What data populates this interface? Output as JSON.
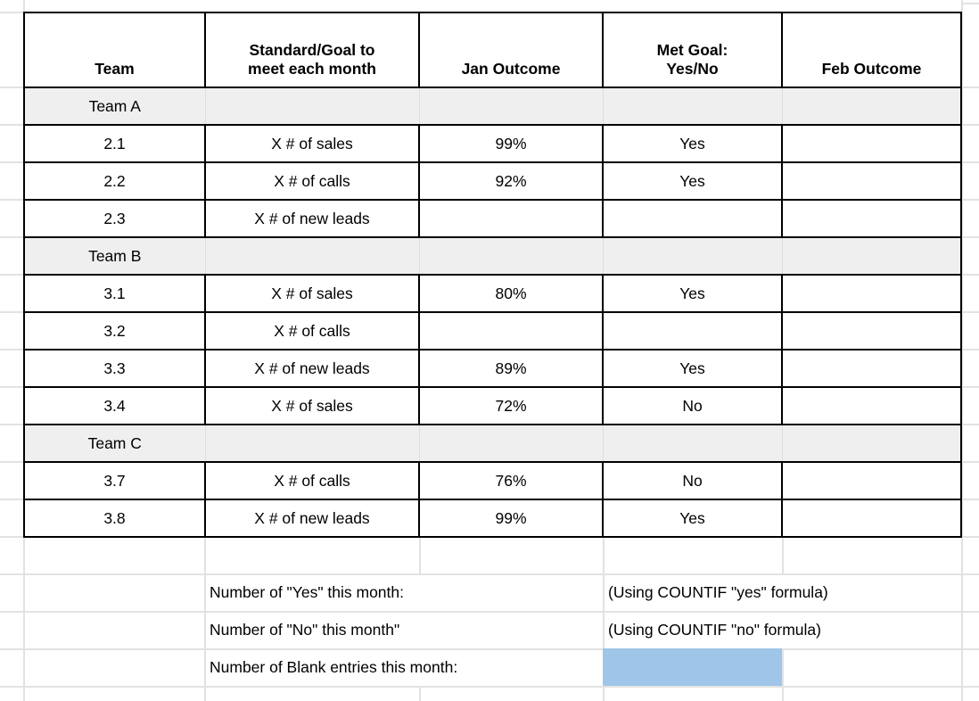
{
  "colors": {
    "highlight_blue": "#9fc5e8",
    "group_row_gray": "#efefef",
    "gridline_gray": "#e2e2e2",
    "border_black": "#000000"
  },
  "table": {
    "headers": {
      "team": "Team",
      "standard": "Standard/Goal to\nmeet each month",
      "jan": "Jan Outcome",
      "met": "Met Goal:\nYes/No",
      "feb": "Feb Outcome"
    },
    "rows": [
      {
        "type": "group",
        "team": "Team A",
        "standard": "",
        "jan": "",
        "met": "",
        "feb": ""
      },
      {
        "type": "data",
        "team": "2.1",
        "standard": "X # of sales",
        "jan": "99%",
        "met": "Yes",
        "feb": ""
      },
      {
        "type": "data",
        "team": "2.2",
        "standard": "X # of calls",
        "jan": "92%",
        "met": "Yes",
        "feb": ""
      },
      {
        "type": "data",
        "team": "2.3",
        "standard": "X # of new leads",
        "jan": "",
        "met": "",
        "feb": ""
      },
      {
        "type": "group",
        "team": "Team B",
        "standard": "",
        "jan": "",
        "met": "",
        "feb": ""
      },
      {
        "type": "data",
        "team": "3.1",
        "standard": "X # of sales",
        "jan": "80%",
        "met": "Yes",
        "feb": ""
      },
      {
        "type": "data",
        "team": "3.2",
        "standard": "X # of calls",
        "jan": "",
        "met": "",
        "feb": ""
      },
      {
        "type": "data",
        "team": "3.3",
        "standard": "X # of new leads",
        "jan": "89%",
        "met": "Yes",
        "feb": ""
      },
      {
        "type": "data",
        "team": "3.4",
        "standard": "X # of sales",
        "jan": "72%",
        "met": "No",
        "feb": ""
      },
      {
        "type": "group",
        "team": "Team C",
        "standard": "",
        "jan": "",
        "met": "",
        "feb": ""
      },
      {
        "type": "data",
        "team": "3.7",
        "standard": "X # of calls",
        "jan": "76%",
        "met": "No",
        "feb": ""
      },
      {
        "type": "data",
        "team": "3.8",
        "standard": "X # of new leads",
        "jan": "99%",
        "met": "Yes",
        "feb": ""
      }
    ]
  },
  "summary": {
    "yes_label": "Number of \"Yes\" this month:",
    "yes_value": "(Using COUNTIF \"yes\" formula)",
    "no_label": "Number of \"No\" this month\"",
    "no_value": "(Using COUNTIF \"no\" formula)",
    "blank_label": "Number of Blank entries this month:",
    "blank_value": ""
  }
}
